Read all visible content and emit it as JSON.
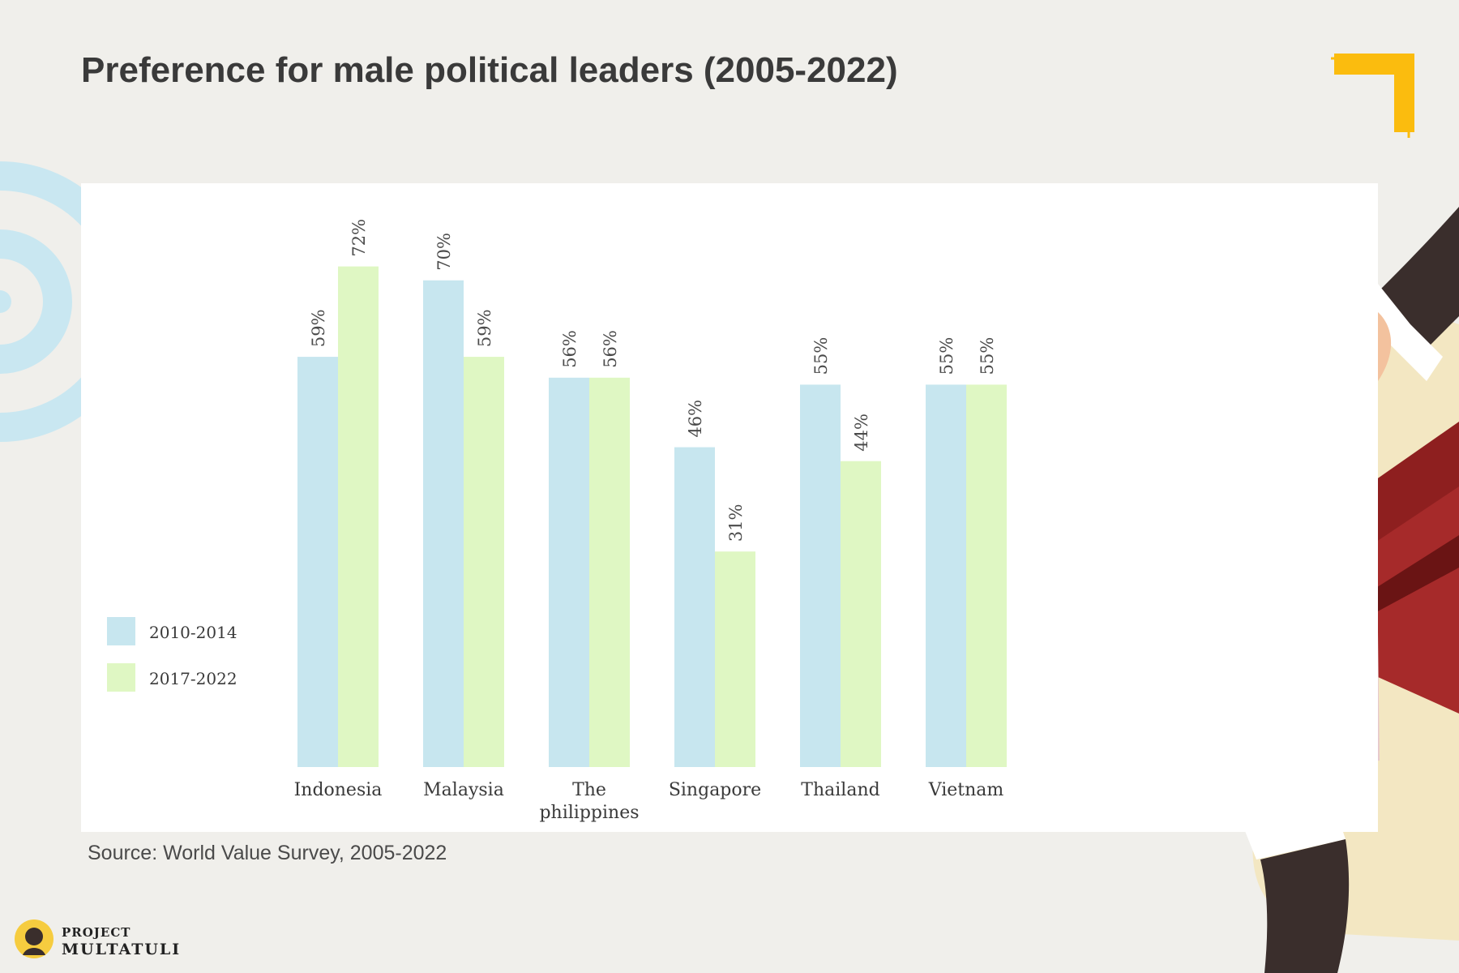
{
  "title": "Preference for male political leaders (2005-2022)",
  "source": "Source: World Value Survey, 2005-2022",
  "logo": {
    "line1": "PROJECT",
    "line2": "MULTATULI"
  },
  "colors": {
    "series1": "#c7e6ef",
    "series2": "#dff7c3",
    "background": "#f0efeb",
    "accent": "#fbbc0e"
  },
  "chart_data": {
    "type": "bar",
    "categories": [
      "Indonesia",
      "Malaysia",
      "The philippines",
      "Singapore",
      "Thailand",
      "Vietnam"
    ],
    "series": [
      {
        "name": "2010-2014",
        "values": [
          59,
          70,
          56,
          46,
          55,
          55
        ]
      },
      {
        "name": "2017-2022",
        "values": [
          72,
          59,
          56,
          31,
          44,
          55
        ]
      }
    ],
    "value_labels": [
      [
        "59%",
        "70%",
        "56%",
        "46%",
        "55%",
        "55%"
      ],
      [
        "72%",
        "59%",
        "56%",
        "31%",
        "44%",
        "55%"
      ]
    ],
    "ylim": [
      0,
      100
    ],
    "grid": false,
    "legend": "bottom-left"
  }
}
